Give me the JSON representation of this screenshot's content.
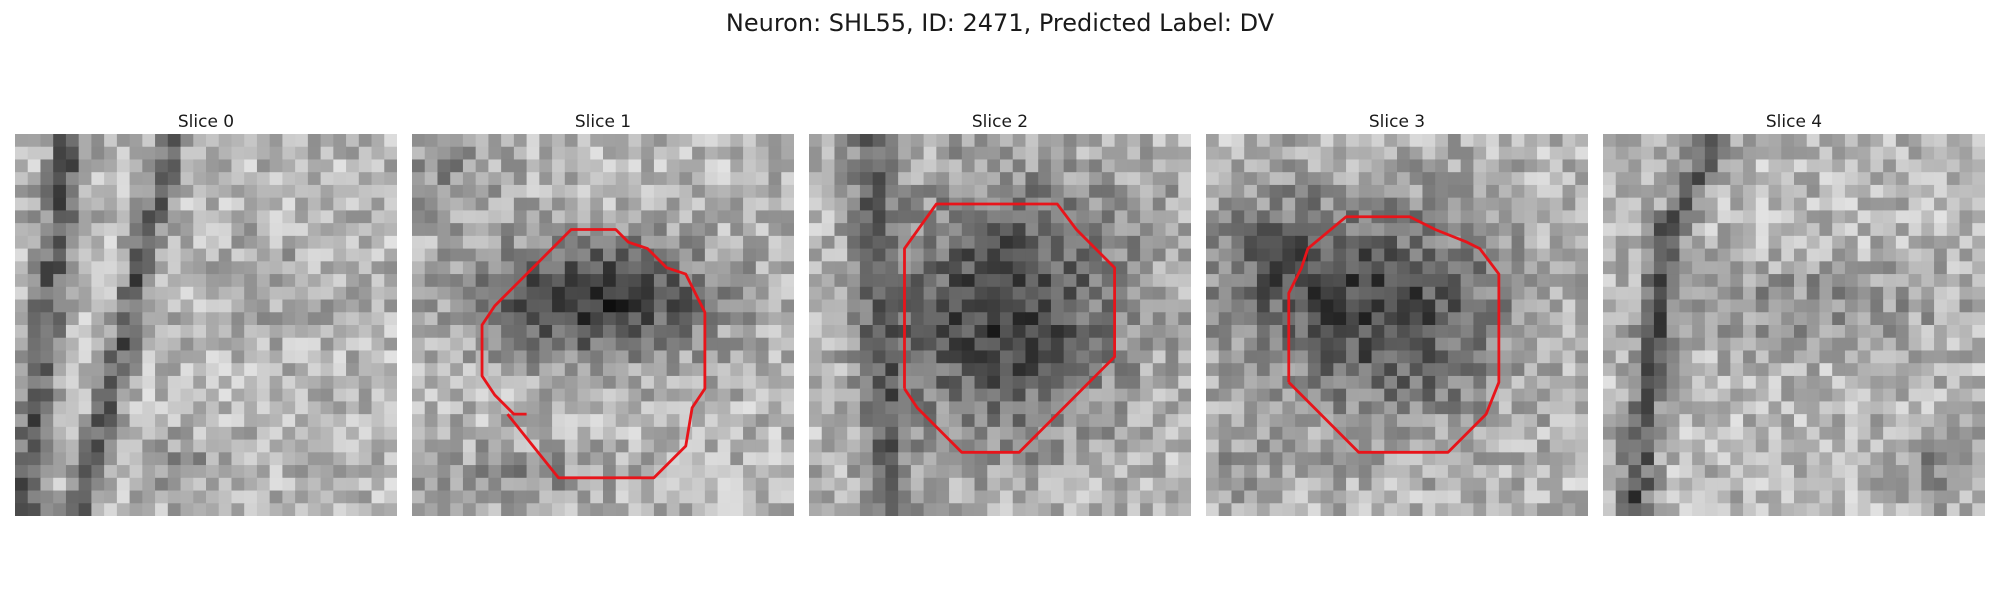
{
  "figure": {
    "title": "Neuron: SHL55, ID: 2471, Predicted Label: DV"
  },
  "slices": [
    {
      "label": "Slice 0",
      "has_contour": false
    },
    {
      "label": "Slice 1",
      "has_contour": true
    },
    {
      "label": "Slice 2",
      "has_contour": true
    },
    {
      "label": "Slice 3",
      "has_contour": true
    },
    {
      "label": "Slice 4",
      "has_contour": false
    }
  ],
  "colors": {
    "contour": "#e8141a",
    "background": "#ffffff",
    "text": "#1a1a1a"
  }
}
